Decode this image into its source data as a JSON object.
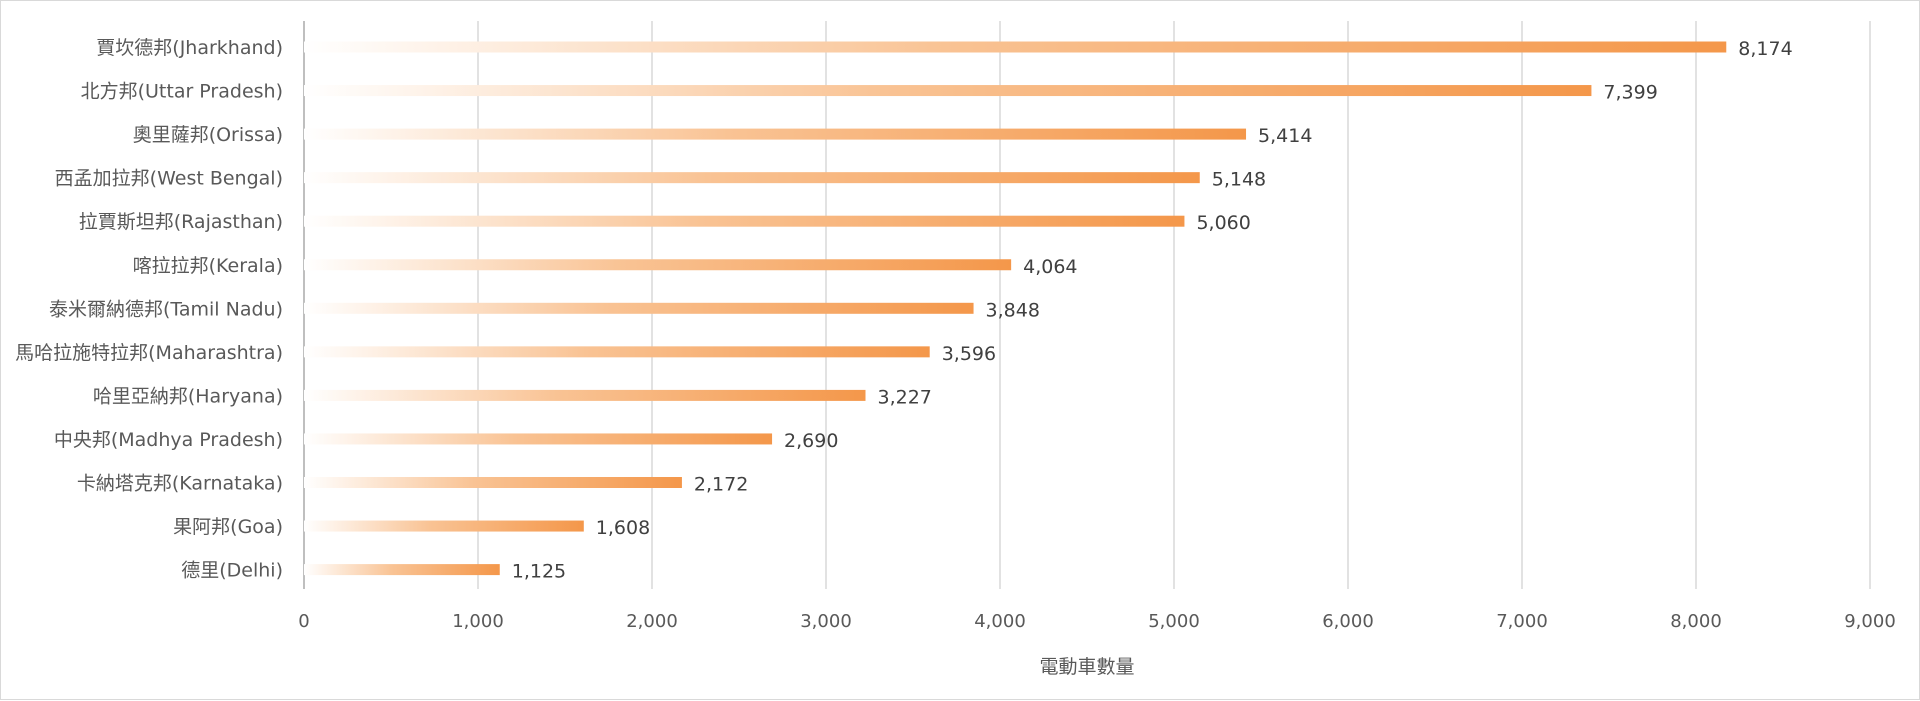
{
  "chart_data": {
    "type": "bar",
    "orientation": "horizontal",
    "categories": [
      "賈坎德邦(Jharkhand)",
      "北方邦(Uttar Pradesh)",
      "奧里薩邦(Orissa)",
      "西孟加拉邦(West Bengal)",
      "拉賈斯坦邦(Rajasthan)",
      "喀拉拉邦(Kerala)",
      "泰米爾納德邦(Tamil Nadu)",
      "馬哈拉施特拉邦(Maharashtra)",
      "哈里亞納邦(Haryana)",
      "中央邦(Madhya Pradesh)",
      "卡納塔克邦(Karnataka)",
      "果阿邦(Goa)",
      "德里(Delhi)"
    ],
    "values": [
      8174,
      7399,
      5414,
      5148,
      5060,
      4064,
      3848,
      3596,
      3227,
      2690,
      2172,
      1608,
      1125
    ],
    "value_labels": [
      "8,174",
      "7,399",
      "5,414",
      "5,148",
      "5,060",
      "4,064",
      "3,848",
      "3,596",
      "3,227",
      "2,690",
      "2,172",
      "1,608",
      "1,125"
    ],
    "xlabel": "電動車數量",
    "xlim": [
      0,
      9000
    ],
    "xticks": [
      0,
      1000,
      2000,
      3000,
      4000,
      5000,
      6000,
      7000,
      8000,
      9000
    ],
    "xtick_labels": [
      "0",
      "1,000",
      "2,000",
      "3,000",
      "4,000",
      "5,000",
      "6,000",
      "7,000",
      "8,000",
      "9,000"
    ],
    "grid": "vertical",
    "legend": "none",
    "colors": {
      "bar_start": "#ffffff",
      "bar_mid": "#f9c394",
      "bar_end": "#f4974a",
      "grid": "#d9d9d9",
      "axis": "#bfbfbf"
    }
  }
}
